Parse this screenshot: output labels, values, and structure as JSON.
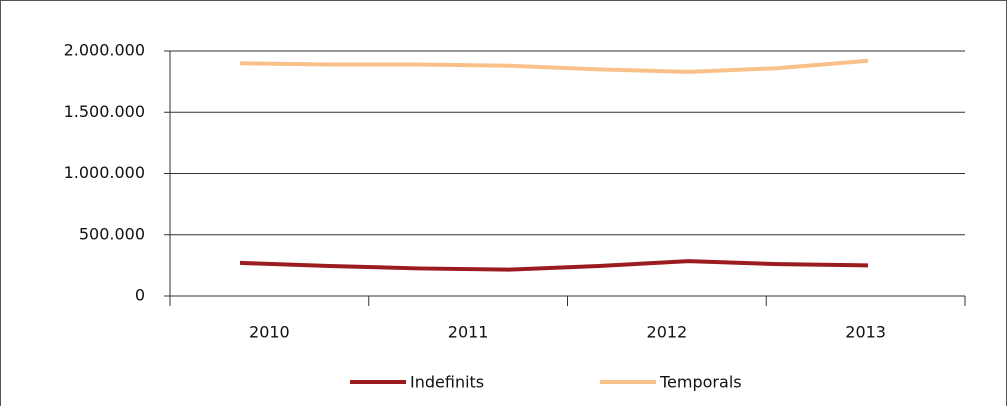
{
  "chart_data": {
    "type": "line",
    "categories": [
      "2010",
      null,
      "2011",
      null,
      "2012",
      null,
      "2013",
      null
    ],
    "series": [
      {
        "name": "Indefinits",
        "color": "#9b1c1f",
        "values": [
          270000,
          245000,
          225000,
          215000,
          245000,
          285000,
          260000,
          250000
        ]
      },
      {
        "name": "Temporals",
        "color": "#f9c08a",
        "values": [
          1900000,
          1890000,
          1890000,
          1880000,
          1850000,
          1830000,
          1860000,
          1920000
        ]
      }
    ],
    "ylim": [
      0,
      2000000
    ],
    "yticks": [
      0,
      {
        "value": 500000,
        "label": "500.000"
      },
      {
        "value": 1000000,
        "label": "1.000.000"
      },
      {
        "value": 1500000,
        "label": "1.500.000"
      },
      {
        "value": 2000000,
        "label": "2.000.000"
      }
    ],
    "grid": true,
    "legend": "bottom"
  }
}
